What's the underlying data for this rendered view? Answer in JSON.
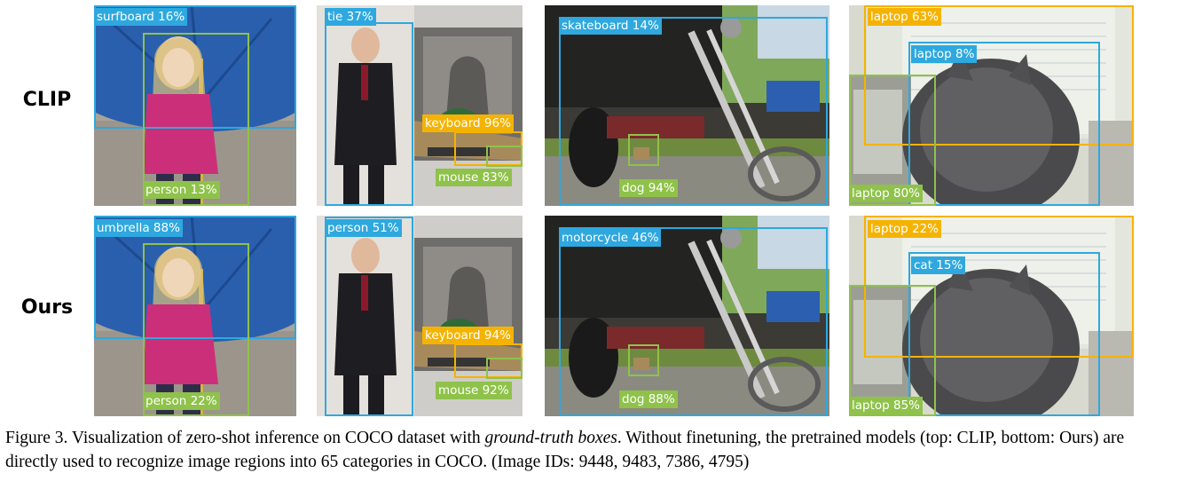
{
  "rows": [
    {
      "label": "CLIP"
    },
    {
      "label": "Ours"
    }
  ],
  "panels": [
    {
      "tags": {
        "r1_blue": "surfboard 16%",
        "r1_green": "person 13%",
        "r2_blue": "umbrella 88%",
        "r2_green": "person 22%"
      }
    },
    {
      "tags": {
        "r1_blue": "tie 37%",
        "r1_yellow": "keyboard 96%",
        "r1_green": "mouse 83%",
        "r2_blue": "person 51%",
        "r2_yellow": "keyboard 94%",
        "r2_green": "mouse 92%"
      }
    },
    {
      "tags": {
        "r1_blue": "skateboard 14%",
        "r1_green": "dog 94%",
        "r2_blue": "motorcycle 46%",
        "r2_green": "dog 88%"
      }
    },
    {
      "tags": {
        "r1_yellow": "laptop 63%",
        "r1_blue": "laptop 8%",
        "r1_green": "laptop 80%",
        "r2_yellow": "laptop 22%",
        "r2_blue": "cat 15%",
        "r2_green": "laptop 85%"
      }
    }
  ],
  "caption": {
    "part1": "Figure 3.  Visualization of zero-shot inference on COCO dataset with ",
    "emph": "ground-truth boxes",
    "part2": ".  Without finetuning, the pretrained models (top: CLIP, bottom: Ours) are directly used to recognize image regions into 65 categories in COCO. (Image IDs: 9448, 9483, 7386, 4795)"
  },
  "colors": {
    "blue": "#2ea8df",
    "green": "#8fc24a",
    "yellow": "#f5b301"
  }
}
